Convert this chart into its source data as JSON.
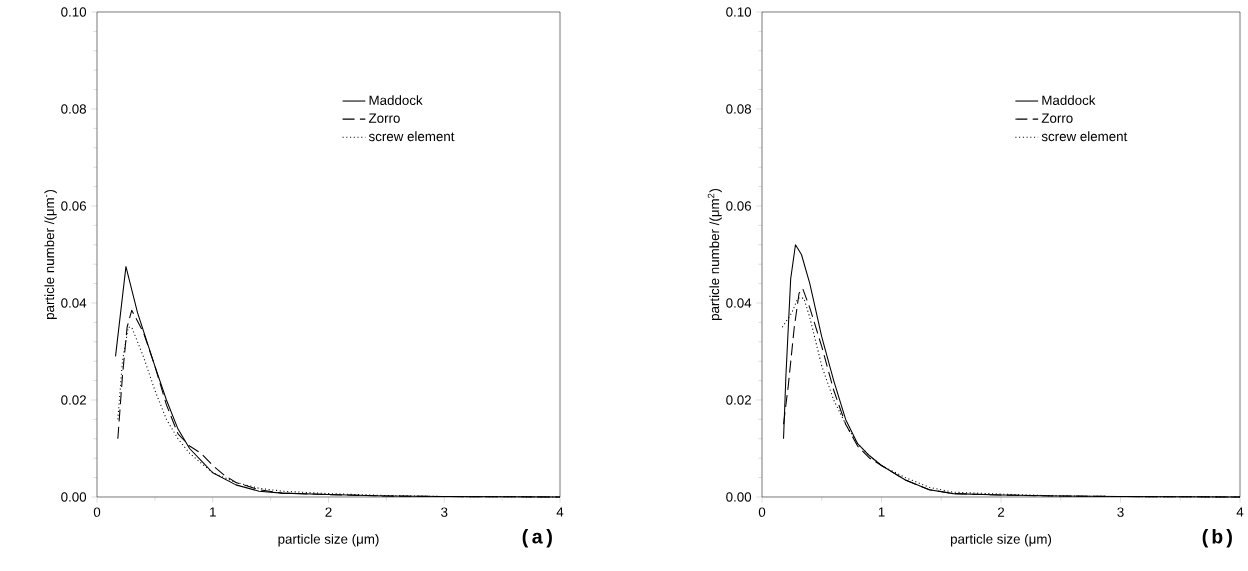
{
  "chart_data": [
    {
      "type": "line",
      "xlabel": "particle size (μm)",
      "ylabel": "particle number /(μm$^{-}$)",
      "annotations": [
        "(a)"
      ],
      "legend": "top right",
      "grid": false,
      "xlim": [
        0,
        4
      ],
      "ylim": [
        0,
        0.1
      ],
      "xticks": [
        0,
        1,
        2,
        3,
        4
      ],
      "yticks": [
        {
          "value": 0,
          "label": "0.00"
        },
        {
          "value": 0.02,
          "label": "0.02"
        },
        {
          "value": 0.04,
          "label": "0.04"
        },
        {
          "value": 0.06,
          "label": "0.06"
        },
        {
          "value": 0.08,
          "label": "0.08"
        },
        {
          "value": 0.1,
          "label": "0.10"
        }
      ],
      "series": [
        {
          "name": "Maddock",
          "color": "#000000",
          "line_style": "solid",
          "x": [
            0.16,
            0.25,
            0.35,
            0.5,
            0.6,
            0.7,
            0.8,
            0.9,
            1.0,
            1.2,
            1.4,
            1.6,
            2.0,
            2.5,
            3.0,
            4.0
          ],
          "values": [
            0.029,
            0.0475,
            0.038,
            0.027,
            0.02,
            0.014,
            0.01,
            0.0075,
            0.005,
            0.0025,
            0.0012,
            0.0008,
            0.0005,
            0.0002,
            0.0001,
            0
          ]
        },
        {
          "name": "Zorro",
          "color": "#000000",
          "line_style": "dashed",
          "x": [
            0.18,
            0.22,
            0.26,
            0.3,
            0.4,
            0.5,
            0.6,
            0.7,
            0.8,
            0.9,
            1.0,
            1.1,
            1.2,
            1.4,
            1.6,
            2.0,
            2.5,
            3.0,
            4.0
          ],
          "values": [
            0.012,
            0.025,
            0.035,
            0.0385,
            0.034,
            0.027,
            0.019,
            0.013,
            0.0105,
            0.009,
            0.0065,
            0.0045,
            0.003,
            0.0015,
            0.0008,
            0.0005,
            0.0002,
            0.0001,
            0
          ]
        },
        {
          "name": "screw element",
          "color": "#000000",
          "line_style": "dotted",
          "x": [
            0.18,
            0.22,
            0.27,
            0.3,
            0.4,
            0.5,
            0.6,
            0.7,
            0.8,
            0.9,
            1.0,
            1.2,
            1.4,
            1.6,
            2.0,
            2.5,
            3.0,
            4.0
          ],
          "values": [
            0.016,
            0.028,
            0.035,
            0.035,
            0.029,
            0.022,
            0.016,
            0.012,
            0.009,
            0.007,
            0.005,
            0.003,
            0.0018,
            0.0012,
            0.0007,
            0.0003,
            0.0001,
            0
          ]
        }
      ]
    },
    {
      "type": "line",
      "xlabel": "particle size (μm)",
      "ylabel": "particle number /(μm$^{2}$)",
      "annotations": [
        "(b)"
      ],
      "legend": "top right",
      "grid": false,
      "xlim": [
        0,
        4
      ],
      "ylim": [
        0,
        0.1
      ],
      "xticks": [
        0,
        1,
        2,
        3,
        4
      ],
      "yticks": [
        {
          "value": 0,
          "label": "0.00"
        },
        {
          "value": 0.02,
          "label": "0.02"
        },
        {
          "value": 0.04,
          "label": "0.04"
        },
        {
          "value": 0.06,
          "label": "0.06"
        },
        {
          "value": 0.08,
          "label": "0.08"
        },
        {
          "value": 0.1,
          "label": "0.10"
        }
      ],
      "series": [
        {
          "name": "Maddock",
          "color": "#000000",
          "line_style": "solid",
          "x": [
            0.18,
            0.2,
            0.24,
            0.28,
            0.33,
            0.4,
            0.5,
            0.6,
            0.7,
            0.8,
            0.9,
            1.0,
            1.2,
            1.4,
            1.6,
            2.0,
            2.5,
            3.0,
            4.0
          ],
          "values": [
            0.012,
            0.025,
            0.045,
            0.052,
            0.05,
            0.044,
            0.033,
            0.024,
            0.016,
            0.011,
            0.0085,
            0.0065,
            0.0035,
            0.0015,
            0.0007,
            0.0004,
            0.0002,
            0.0001,
            0
          ]
        },
        {
          "name": "Zorro",
          "color": "#000000",
          "line_style": "dashed",
          "x": [
            0.18,
            0.22,
            0.27,
            0.31,
            0.34,
            0.4,
            0.5,
            0.6,
            0.7,
            0.8,
            0.9,
            1.0,
            1.2,
            1.4,
            1.6,
            2.0,
            2.5,
            3.0,
            4.0
          ],
          "values": [
            0.015,
            0.023,
            0.035,
            0.042,
            0.043,
            0.039,
            0.031,
            0.022,
            0.015,
            0.0105,
            0.008,
            0.0065,
            0.0035,
            0.0015,
            0.0007,
            0.0004,
            0.0002,
            0.0001,
            0
          ]
        },
        {
          "name": "screw element",
          "color": "#000000",
          "line_style": "dotted",
          "x": [
            0.17,
            0.25,
            0.3,
            0.35,
            0.4,
            0.5,
            0.6,
            0.7,
            0.8,
            0.9,
            1.0,
            1.2,
            1.4,
            1.6,
            2.0,
            2.5,
            3.0,
            4.0
          ],
          "values": [
            0.035,
            0.038,
            0.041,
            0.041,
            0.037,
            0.027,
            0.02,
            0.015,
            0.011,
            0.0085,
            0.0065,
            0.004,
            0.002,
            0.001,
            0.0006,
            0.0002,
            0.0001,
            0
          ]
        }
      ]
    }
  ]
}
